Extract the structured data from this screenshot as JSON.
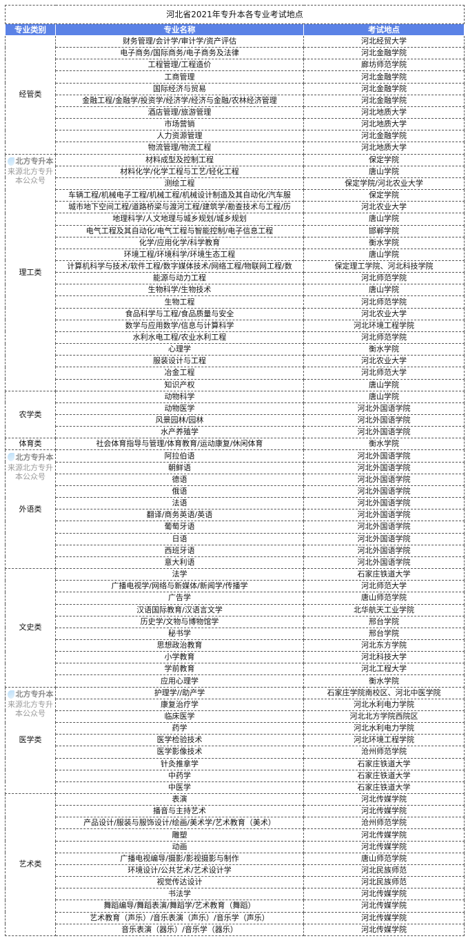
{
  "title": "河北省2021年专升本各专业考试地点",
  "headers": {
    "category": "专业类别",
    "major": "专业名称",
    "location": "考试地点"
  },
  "header_color": "#5b82e6",
  "watermark": {
    "brand": "北方专升本",
    "source": "来源北方专升本公众号"
  },
  "groups": [
    {
      "category": "经管类",
      "rows": [
        [
          "财务管理/会计学/审计学/资产评估",
          "河北经贸大学"
        ],
        [
          "电子商务/国际商务/电子商务及法律",
          "河北金融学院"
        ],
        [
          "工程管理/工程造价",
          "廊坊师范学院"
        ],
        [
          "工商管理",
          "河北金融学院"
        ],
        [
          "国际经济与贸易",
          "河北金融学院"
        ],
        [
          "金融工程/金融学/投资学/经济学/经济与金融/农林经济管理",
          "河北金融学院"
        ],
        [
          "酒店管理/旅游管理",
          "河北地质大学"
        ],
        [
          "市场营销",
          "河北地质大学"
        ],
        [
          "人力资源管理",
          "河北金融学院"
        ],
        [
          "物流管理/物流工程",
          "河北地质大学"
        ]
      ]
    },
    {
      "category": "理工类",
      "rows": [
        [
          "材料成型及控制工程",
          "保定学院"
        ],
        [
          "材料化学/化学工程与工艺/轻化工程",
          "唐山学院"
        ],
        [
          "测绘工程",
          "保定学院/河北农业大学"
        ],
        [
          "车辆工程/机械电子工程/机械工程/机械设计制造及其自动化/汽车服",
          "保定学院"
        ],
        [
          "城市地下空间工程/道路桥梁与渡河工程/建筑学/勘查技术与工程/历",
          "河北农业大学"
        ],
        [
          "地理科学/人文地理与城乡规划/城乡规划",
          "唐山学院"
        ],
        [
          "电气工程及其自动化/电气工程与智能控制/电子信息工程",
          "邯郸学院"
        ],
        [
          "化学/应用化学/科学教育",
          "衡水学院"
        ],
        [
          "环境工程/环境科学/环境生态工程",
          "唐山学院"
        ],
        [
          "计算机科学与技术/软件工程/数字媒体技术/网络工程/物联网工程/数",
          "保定理工学院、河北科技学院"
        ],
        [
          "能源与动力工程",
          "河北师范学院"
        ],
        [
          "生物科学/生物技术",
          "唐山学院"
        ],
        [
          "生物工程",
          "河北师范学院"
        ],
        [
          "食品科学与工程/食品质量与安全",
          "河北农业大学"
        ],
        [
          "数学与应用数学/信息与计算科学",
          "河北环境工程学院"
        ],
        [
          "水利水电工程/农业水利工程",
          "河北师范学院"
        ],
        [
          "心理学",
          "衡水学院"
        ],
        [
          "服装设计与工程",
          "河北农业大学"
        ],
        [
          "冶金工程",
          "河北师范大学"
        ],
        [
          "知识产权",
          "唐山学院"
        ]
      ]
    },
    {
      "category": "农学类",
      "rows": [
        [
          "动物科学",
          "唐山学院"
        ],
        [
          "动物医学",
          "河北外国语学院"
        ],
        [
          "风景园林/园林",
          "河北外国语学院"
        ],
        [
          "水产养殖学",
          "河北外国语学院"
        ]
      ]
    },
    {
      "category": "体育类",
      "rows": [
        [
          "社会体育指导与管理/体育教育/运动康复/休闲体育",
          "衡水学院"
        ]
      ]
    },
    {
      "category": "外语类",
      "rows": [
        [
          "阿拉伯语",
          "河北外国语学院"
        ],
        [
          "朝鲜语",
          "河北外国语学院"
        ],
        [
          "德语",
          "河北外国语学院"
        ],
        [
          "俄语",
          "河北外国语学院"
        ],
        [
          "法语",
          "河北外国语学院"
        ],
        [
          "翻译/商务英语/英语",
          "河北外国语学院"
        ],
        [
          "葡萄牙语",
          "河北外国语学院"
        ],
        [
          "日语",
          "河北外国语学院"
        ],
        [
          "西班牙语",
          "河北外国语学院"
        ],
        [
          "意大利语",
          "河北外国语学院"
        ]
      ]
    },
    {
      "category": "文史类",
      "rows": [
        [
          "法学",
          "石家庄铁道大学"
        ],
        [
          "广播电视学/网络与新媒体/新闻学/传播学",
          "河北师范大学"
        ],
        [
          "广告学",
          "唐山师范学院"
        ],
        [
          "汉语国际教育/汉语言文学",
          "北华航天工业学院"
        ],
        [
          "历史学/文物与博物馆学",
          "邢台学院"
        ],
        [
          "秘书学",
          "邢台学院"
        ],
        [
          "思想政治教育",
          "河北东方学院"
        ],
        [
          "小学教育",
          "河北科技大学"
        ],
        [
          "学前教育",
          "河北工程大学"
        ],
        [
          "应用心理学",
          "衡水学院"
        ]
      ]
    },
    {
      "category": "医学类",
      "rows": [
        [
          "护理学//助产学",
          "石家庄学院南校区、河北中医学院"
        ],
        [
          "康复治疗学",
          "河北水利电力学院"
        ],
        [
          "临床医学",
          "河北北方学院西院区"
        ],
        [
          "药学",
          "河北水利电力学院"
        ],
        [
          "医学检验技术",
          "河北环境工程学院"
        ],
        [
          "医学影像技术",
          "沧州师范学院"
        ],
        [
          "针灸推拿学",
          "石家庄铁道大学"
        ],
        [
          "中药学",
          "石家庄铁道大学"
        ],
        [
          "中医学",
          "石家庄铁道大学"
        ]
      ]
    },
    {
      "category": "艺术类",
      "rows": [
        [
          "表演",
          "河北传媒学院"
        ],
        [
          "播音与主持艺术",
          "河北传媒学院"
        ],
        [
          "产品设计/服装与服饰设计/绘画/美术学/艺术教育（美术）",
          "沧州师范学院"
        ],
        [
          "雕塑",
          "河北传媒学院"
        ],
        [
          "动画",
          "河北传媒学院"
        ],
        [
          "广播电视编导/摄影/影视摄影与制作",
          "唐山师范学院"
        ],
        [
          "环境设计/公共艺术/艺术设计学",
          "河北民族师范"
        ],
        [
          "视觉传达设计",
          "河北民族师范"
        ],
        [
          "书法学",
          "河北传媒学院"
        ],
        [
          "舞蹈编导/舞蹈表演/舞蹈学/艺术教育（舞蹈）",
          "河北传媒学院"
        ],
        [
          "艺术教育（声乐）/音乐表演（声乐）/音乐学（声乐）",
          "河北传媒学院"
        ],
        [
          "音乐表演（器乐）/音乐学（器乐）",
          "河北传媒学院"
        ]
      ]
    }
  ]
}
